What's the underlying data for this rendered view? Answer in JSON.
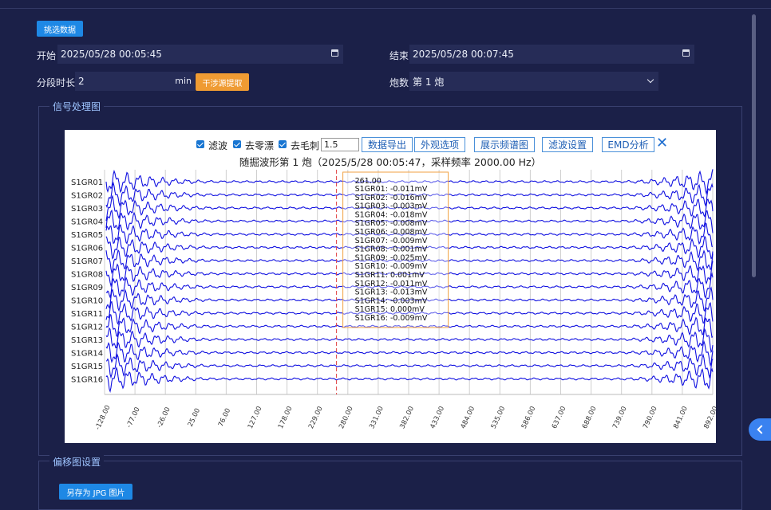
{
  "header": {
    "select_data_label": "挑选数据"
  },
  "form": {
    "start_label": "开始",
    "start_value": "2025/05/28 00:05:45",
    "end_label": "结束",
    "end_value": "2025/05/28 00:07:45",
    "segment_label": "分段时长",
    "segment_value": "2",
    "segment_unit": "min",
    "extract_button": "干涉源提取",
    "shot_label": "炮数",
    "shot_value": "第 1 炮"
  },
  "signal_section": {
    "legend": "信号处理图"
  },
  "chart_toolbar": {
    "filter_label": "滤波",
    "drift_label": "去零漂",
    "spike_label": "去毛刺",
    "spike_value": "1.5",
    "export_button": "数据导出",
    "appearance_button": "外观选项",
    "spectrum_button": "展示频谱图",
    "filter_settings_button": "滤波设置",
    "emd_button": "EMD分析"
  },
  "chart_data": {
    "type": "line",
    "title": "随掘波形第 1 炮（2025/5/28 00:05:47，采样频率 2000.00 Hz）",
    "series_names": [
      "S1GR01",
      "S1GR02",
      "S1GR03",
      "S1GR04",
      "S1GR05",
      "S1GR06",
      "S1GR07",
      "S1GR08",
      "S1GR09",
      "S1GR10",
      "S1GR11",
      "S1GR12",
      "S1GR13",
      "S1GR14",
      "S1GR15",
      "S1GR16"
    ],
    "x_ticks": [
      "-128.00",
      "-77.00",
      "-26.00",
      "25.00",
      "76.00",
      "127.00",
      "178.00",
      "229.00",
      "280.00",
      "331.00",
      "382.00",
      "433.00",
      "484.00",
      "535.00",
      "586.00",
      "637.00",
      "688.00",
      "739.00",
      "790.00",
      "841.00",
      "892.00"
    ],
    "xlim": [
      -128,
      892
    ],
    "cursor_x": 261.0,
    "tooltip": {
      "header": "261.00",
      "rows": [
        "S1GR01: -0.011mV",
        "S1GR02: -0.016mV",
        "S1GR03: -0.003mV",
        "S1GR04: -0.018mV",
        "S1GR05: -0.008mV",
        "S1GR06: -0.008mV",
        "S1GR07: -0.009mV",
        "S1GR08: -0.001mV",
        "S1GR09: -0.025mV",
        "S1GR10: -0.009mV",
        "S1GR11: 0.001mV",
        "S1GR12: -0.011mV",
        "S1GR13: -0.013mV",
        "S1GR14: -0.003mV",
        "S1GR15: 0.000mV",
        "S1GR16: -0.009mV"
      ]
    },
    "grid": true,
    "line_color": "#1010e0"
  },
  "offset_section": {
    "legend": "偏移图设置",
    "save_jpg_button": "另存为 JPG 图片"
  }
}
